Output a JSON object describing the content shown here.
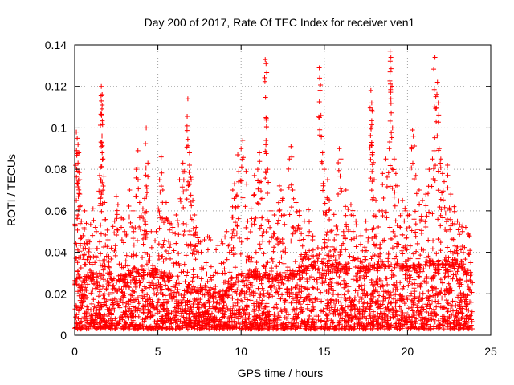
{
  "chart_data": {
    "type": "scatter",
    "title": "Day 200 of 2017, Rate Of TEC Index for receiver ven1",
    "xlabel": "GPS time / hours",
    "ylabel": "ROTI / TECUs",
    "xlim": [
      0,
      25
    ],
    "ylim": [
      0,
      0.14
    ],
    "xticks": [
      0,
      5,
      10,
      15,
      20,
      25
    ],
    "yticks": [
      0,
      0.02,
      0.04,
      0.06,
      0.08,
      0.1,
      0.12,
      0.14
    ],
    "xtick_labels": [
      "0",
      "5",
      "10",
      "15",
      "20",
      "25"
    ],
    "ytick_labels": [
      "0",
      "0.02",
      "0.04",
      "0.06",
      "0.08",
      "0.1",
      "0.12",
      "0.14"
    ],
    "grid": true,
    "marker": "plus",
    "color": "#ff0000",
    "x_coverage": [
      0,
      23.9
    ],
    "series": [
      {
        "points": [
          [
            0.1,
            0.098
          ],
          [
            0.15,
            0.095
          ],
          [
            0.2,
            0.092
          ],
          [
            0.25,
            0.088
          ],
          [
            0.2,
            0.083
          ],
          [
            0.3,
            0.075
          ],
          [
            0.1,
            0.065
          ],
          [
            0.3,
            0.062
          ],
          [
            0.2,
            0.058
          ],
          [
            0.4,
            0.055
          ],
          [
            0.6,
            0.06
          ],
          [
            0.7,
            0.054
          ],
          [
            0.5,
            0.048
          ],
          [
            0.8,
            0.046
          ],
          [
            0.9,
            0.045
          ],
          [
            1.1,
            0.061
          ],
          [
            1.3,
            0.05
          ],
          [
            1.5,
            0.045
          ],
          [
            1.5,
            0.077
          ],
          [
            1.55,
            0.075
          ],
          [
            1.6,
            0.12
          ],
          [
            1.65,
            0.116
          ],
          [
            1.6,
            0.113
          ],
          [
            1.65,
            0.111
          ],
          [
            1.6,
            0.091
          ],
          [
            1.65,
            0.088
          ],
          [
            1.7,
            0.085
          ],
          [
            1.6,
            0.068
          ],
          [
            1.8,
            0.064
          ],
          [
            2.0,
            0.046
          ],
          [
            2.2,
            0.042
          ],
          [
            2.5,
            0.067
          ],
          [
            2.6,
            0.063
          ],
          [
            2.4,
            0.055
          ],
          [
            2.8,
            0.052
          ],
          [
            3.0,
            0.05
          ],
          [
            3.1,
            0.048
          ],
          [
            3.3,
            0.07
          ],
          [
            3.5,
            0.06
          ],
          [
            3.7,
            0.08
          ],
          [
            3.8,
            0.089
          ],
          [
            3.9,
            0.064
          ],
          [
            4.1,
            0.061
          ],
          [
            4.2,
            0.055
          ],
          [
            4.3,
            0.072
          ],
          [
            4.4,
            0.083
          ],
          [
            4.2,
            0.066
          ],
          [
            4.3,
            0.1
          ],
          [
            4.6,
            0.05
          ],
          [
            4.9,
            0.05
          ],
          [
            5.1,
            0.075
          ],
          [
            5.2,
            0.086
          ],
          [
            5.3,
            0.07
          ],
          [
            5.5,
            0.064
          ],
          [
            5.7,
            0.054
          ],
          [
            5.9,
            0.052
          ],
          [
            6.1,
            0.058
          ],
          [
            6.3,
            0.075
          ],
          [
            6.5,
            0.083
          ],
          [
            6.6,
            0.079
          ],
          [
            6.7,
            0.07
          ],
          [
            6.8,
            0.114
          ],
          [
            6.75,
            0.101
          ],
          [
            6.9,
            0.088
          ],
          [
            6.9,
            0.082
          ],
          [
            7.0,
            0.075
          ],
          [
            7.1,
            0.065
          ],
          [
            7.2,
            0.058
          ],
          [
            7.3,
            0.052
          ],
          [
            7.4,
            0.047
          ],
          [
            7.6,
            0.04
          ],
          [
            7.9,
            0.035
          ],
          [
            8.2,
            0.033
          ],
          [
            8.6,
            0.03
          ],
          [
            9.0,
            0.032
          ],
          [
            9.3,
            0.04
          ],
          [
            9.5,
            0.07
          ],
          [
            9.6,
            0.073
          ],
          [
            9.7,
            0.067
          ],
          [
            9.8,
            0.062
          ],
          [
            9.5,
            0.057
          ],
          [
            9.8,
            0.087
          ],
          [
            10.0,
            0.09
          ],
          [
            10.1,
            0.094
          ],
          [
            10.3,
            0.079
          ],
          [
            10.4,
            0.055
          ],
          [
            10.6,
            0.061
          ],
          [
            10.8,
            0.077
          ],
          [
            11.0,
            0.08
          ],
          [
            11.1,
            0.088
          ],
          [
            11.2,
            0.074
          ],
          [
            11.3,
            0.066
          ],
          [
            11.45,
            0.133
          ],
          [
            11.5,
            0.131
          ],
          [
            11.5,
            0.105
          ],
          [
            11.55,
            0.1
          ],
          [
            11.5,
            0.094
          ],
          [
            11.6,
            0.08
          ],
          [
            11.8,
            0.06
          ],
          [
            12.0,
            0.058
          ],
          [
            12.2,
            0.054
          ],
          [
            12.3,
            0.072
          ],
          [
            12.4,
            0.07
          ],
          [
            12.5,
            0.066
          ],
          [
            12.6,
            0.058
          ],
          [
            12.9,
            0.085
          ],
          [
            13.0,
            0.091
          ],
          [
            13.1,
            0.07
          ],
          [
            13.3,
            0.064
          ],
          [
            13.5,
            0.06
          ],
          [
            13.8,
            0.055
          ],
          [
            14.1,
            0.05
          ],
          [
            14.3,
            0.046
          ],
          [
            14.7,
            0.129
          ],
          [
            14.72,
            0.124
          ],
          [
            14.8,
            0.106
          ],
          [
            14.9,
            0.088
          ],
          [
            15.0,
            0.08
          ],
          [
            15.2,
            0.075
          ],
          [
            15.3,
            0.065
          ],
          [
            15.1,
            0.058
          ],
          [
            15.4,
            0.05
          ],
          [
            15.6,
            0.046
          ],
          [
            15.9,
            0.09
          ],
          [
            16.0,
            0.085
          ],
          [
            16.3,
            0.07
          ],
          [
            16.6,
            0.063
          ],
          [
            16.9,
            0.055
          ],
          [
            17.2,
            0.048
          ],
          [
            17.5,
            0.055
          ],
          [
            17.8,
            0.118
          ],
          [
            17.85,
            0.112
          ],
          [
            17.9,
            0.108
          ],
          [
            17.8,
            0.1
          ],
          [
            17.85,
            0.093
          ],
          [
            17.9,
            0.088
          ],
          [
            18.0,
            0.075
          ],
          [
            18.1,
            0.065
          ],
          [
            18.3,
            0.06
          ],
          [
            18.5,
            0.078
          ],
          [
            18.7,
            0.085
          ],
          [
            18.9,
            0.09
          ],
          [
            18.95,
            0.137
          ],
          [
            19.0,
            0.134
          ],
          [
            18.95,
            0.127
          ],
          [
            19.0,
            0.114
          ],
          [
            19.1,
            0.1
          ],
          [
            19.2,
            0.085
          ],
          [
            19.3,
            0.078
          ],
          [
            19.4,
            0.072
          ],
          [
            19.7,
            0.065
          ],
          [
            19.9,
            0.06
          ],
          [
            20.1,
            0.058
          ],
          [
            20.3,
            0.099
          ],
          [
            20.35,
            0.096
          ],
          [
            20.5,
            0.077
          ],
          [
            20.7,
            0.07
          ],
          [
            20.9,
            0.065
          ],
          [
            21.1,
            0.068
          ],
          [
            21.3,
            0.08
          ],
          [
            21.5,
            0.085
          ],
          [
            21.6,
            0.089
          ],
          [
            21.65,
            0.134
          ],
          [
            21.8,
            0.122
          ],
          [
            21.7,
            0.115
          ],
          [
            21.85,
            0.112
          ],
          [
            21.9,
            0.09
          ],
          [
            22.0,
            0.085
          ],
          [
            22.1,
            0.078
          ],
          [
            22.2,
            0.074
          ],
          [
            22.4,
            0.082
          ],
          [
            22.6,
            0.068
          ],
          [
            22.8,
            0.062
          ],
          [
            23.0,
            0.055
          ],
          [
            23.3,
            0.05
          ],
          [
            23.5,
            0.052
          ],
          [
            23.7,
            0.048
          ],
          [
            23.8,
            0.035
          ]
        ],
        "dense_band": [
          [
            0,
            0.024
          ],
          [
            0.5,
            0.026
          ],
          [
            1,
            0.027
          ],
          [
            1.5,
            0.028
          ],
          [
            2,
            0.027
          ],
          [
            2.5,
            0.026
          ],
          [
            3,
            0.027
          ],
          [
            3.5,
            0.028
          ],
          [
            4,
            0.029
          ],
          [
            4.5,
            0.029
          ],
          [
            5,
            0.03
          ],
          [
            5.5,
            0.028
          ],
          [
            6,
            0.026
          ],
          [
            6.5,
            0.024
          ],
          [
            7,
            0.022
          ],
          [
            7.5,
            0.02
          ],
          [
            8,
            0.019
          ],
          [
            8.5,
            0.018
          ],
          [
            9,
            0.019
          ],
          [
            9.5,
            0.024
          ],
          [
            10,
            0.027
          ],
          [
            10.5,
            0.028
          ],
          [
            11,
            0.028
          ],
          [
            11.5,
            0.027
          ],
          [
            12,
            0.027
          ],
          [
            12.5,
            0.028
          ],
          [
            13,
            0.029
          ],
          [
            13.5,
            0.03
          ],
          [
            14,
            0.031
          ],
          [
            14.5,
            0.033
          ],
          [
            15,
            0.034
          ],
          [
            15.5,
            0.033
          ],
          [
            16,
            0.032
          ],
          [
            16.5,
            0.031
          ],
          [
            17,
            0.03
          ],
          [
            17.5,
            0.031
          ],
          [
            18,
            0.032
          ],
          [
            18.5,
            0.033
          ],
          [
            19,
            0.033
          ],
          [
            19.5,
            0.032
          ],
          [
            20,
            0.031
          ],
          [
            20.5,
            0.031
          ],
          [
            21,
            0.032
          ],
          [
            21.5,
            0.034
          ],
          [
            22,
            0.034
          ],
          [
            22.5,
            0.033
          ],
          [
            23,
            0.032
          ],
          [
            23.5,
            0.03
          ],
          [
            23.9,
            0.027
          ]
        ]
      }
    ]
  }
}
